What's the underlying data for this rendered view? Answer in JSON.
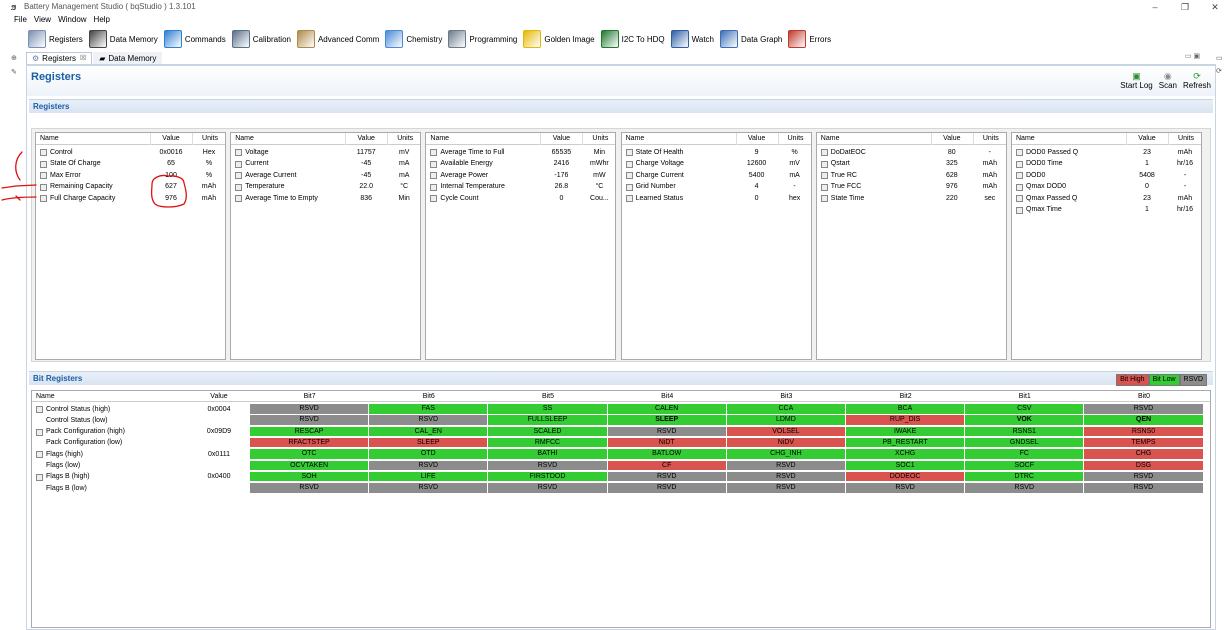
{
  "window": {
    "title": "Battery Management Studio ( bqStudio ) 1.3.101",
    "controls": [
      "–",
      "❐",
      "✕"
    ]
  },
  "menu": [
    "File",
    "View",
    "Window",
    "Help"
  ],
  "toolbar": [
    {
      "label": "Registers",
      "icon": "gears-icon",
      "color": "#7a8fb3"
    },
    {
      "label": "Data Memory",
      "icon": "memory-chip-icon",
      "color": "#444444"
    },
    {
      "label": "Commands",
      "icon": "refresh-arrows-icon",
      "color": "#2f7fd3"
    },
    {
      "label": "Calibration",
      "icon": "screen-icon",
      "color": "#5a6f8a"
    },
    {
      "label": "Advanced Comm",
      "icon": "comm-icon",
      "color": "#b08a48"
    },
    {
      "label": "Chemistry",
      "icon": "flask-icon",
      "color": "#4a8ad8"
    },
    {
      "label": "Programming",
      "icon": "calculator-icon",
      "color": "#6c7b8c"
    },
    {
      "label": "Golden Image",
      "icon": "chip-icon",
      "color": "#e6b800"
    },
    {
      "label": "I2C To HDQ",
      "icon": "hdq-icon",
      "color": "#1e7a2e"
    },
    {
      "label": "Watch",
      "icon": "watch-icon",
      "color": "#2d5ea5"
    },
    {
      "label": "Data Graph",
      "icon": "graph-icon",
      "color": "#3a6fb5"
    },
    {
      "label": "Errors",
      "icon": "error-icon",
      "color": "#c0392b"
    }
  ],
  "tabs": [
    {
      "label": "Registers",
      "close": "☒",
      "active": true
    },
    {
      "label": "Data Memory",
      "close": "",
      "active": false
    }
  ],
  "editor": {
    "title": "Registers",
    "actions": [
      {
        "label": "Start Log",
        "icon": "log-icon"
      },
      {
        "label": "Scan",
        "icon": "scan-icon"
      },
      {
        "label": "Refresh",
        "icon": "refresh-icon"
      }
    ],
    "section_registers": "Registers",
    "section_bits": "Bit Registers"
  },
  "register_panels": [
    {
      "headers": [
        "Name",
        "Value",
        "Units"
      ],
      "rows": [
        [
          "Control",
          "0x0016",
          "Hex"
        ],
        [
          "State Of Charge",
          "65",
          "%"
        ],
        [
          "Max Error",
          "100",
          "%"
        ],
        [
          "Remaining Capacity",
          "627",
          "mAh"
        ],
        [
          "Full Charge Capacity",
          "976",
          "mAh"
        ]
      ]
    },
    {
      "headers": [
        "Name",
        "Value",
        "Units"
      ],
      "rows": [
        [
          "Voltage",
          "11757",
          "mV"
        ],
        [
          "Current",
          "-45",
          "mA"
        ],
        [
          "Average Current",
          "-45",
          "mA"
        ],
        [
          "Temperature",
          "22.0",
          "°C"
        ],
        [
          "Average Time to Empty",
          "836",
          "Min"
        ]
      ]
    },
    {
      "headers": [
        "Name",
        "Value",
        "Units"
      ],
      "rows": [
        [
          "Average Time to Full",
          "65535",
          "Min"
        ],
        [
          "Available Energy",
          "2416",
          "mWhr"
        ],
        [
          "Average Power",
          "-176",
          "mW"
        ],
        [
          "Internal Temperature",
          "26.8",
          "°C"
        ],
        [
          "Cycle Count",
          "0",
          "Cou..."
        ]
      ]
    },
    {
      "headers": [
        "Name",
        "Value",
        "Units"
      ],
      "rows": [
        [
          "State Of Health",
          "9",
          "%"
        ],
        [
          "Charge Voltage",
          "12600",
          "mV"
        ],
        [
          "Charge Current",
          "5400",
          "mA"
        ],
        [
          "Grid Number",
          "4",
          "-"
        ],
        [
          "Learned Status",
          "0",
          "hex"
        ]
      ]
    },
    {
      "headers": [
        "Name",
        "Value",
        "Units"
      ],
      "rows": [
        [
          "DoDatEOC",
          "80",
          "-"
        ],
        [
          "Qstart",
          "325",
          "mAh"
        ],
        [
          "True RC",
          "628",
          "mAh"
        ],
        [
          "True FCC",
          "976",
          "mAh"
        ],
        [
          "State Time",
          "220",
          "sec"
        ]
      ]
    },
    {
      "headers": [
        "Name",
        "Value",
        "Units"
      ],
      "rows": [
        [
          "DOD0 Passed Q",
          "23",
          "mAh"
        ],
        [
          "DOD0 Time",
          "1",
          "hr/16"
        ],
        [
          "DOD0",
          "5408",
          "-"
        ],
        [
          "Qmax DOD0",
          "0",
          "-"
        ],
        [
          "Qmax Passed Q",
          "23",
          "mAh"
        ],
        [
          "Qmax Time",
          "1",
          "hr/16"
        ]
      ]
    }
  ],
  "bit_legend": [
    {
      "label": "Bit High",
      "color": "#d9534f"
    },
    {
      "label": "Bit Low",
      "color": "#33cc33"
    },
    {
      "label": "RSVD",
      "color": "#8c8c8c"
    }
  ],
  "bit_headers": [
    "Name",
    "Value",
    "Bit7",
    "Bit6",
    "Bit5",
    "Bit4",
    "Bit3",
    "Bit2",
    "Bit1",
    "Bit0"
  ],
  "bit_colors": {
    "H": "#d9534f",
    "L": "#33cc33",
    "R": "#8c8c8c"
  },
  "bit_rows": [
    {
      "name": "Control Status (high)",
      "value": "0x0004",
      "check": true,
      "bits": [
        [
          "RSVD",
          "R"
        ],
        [
          "FAS",
          "L"
        ],
        [
          "SS",
          "L"
        ],
        [
          "CALEN",
          "L"
        ],
        [
          "CCA",
          "L"
        ],
        [
          "BCA",
          "L"
        ],
        [
          "CSV",
          "L"
        ],
        [
          "RSVD",
          "R"
        ]
      ]
    },
    {
      "name": "Control Status (low)",
      "value": "",
      "check": false,
      "bits": [
        [
          "RSVD",
          "R"
        ],
        [
          "RSVD",
          "R"
        ],
        [
          "FULLSLEEP",
          "L"
        ],
        [
          "SLEEP",
          "L",
          true
        ],
        [
          "LDMD",
          "L"
        ],
        [
          "RUP_DIS",
          "H"
        ],
        [
          "VOK",
          "L",
          true
        ],
        [
          "QEN",
          "L",
          true
        ]
      ]
    },
    {
      "name": "Pack Configuration (high)",
      "value": "0x09D9",
      "check": true,
      "bits": [
        [
          "RESCAP",
          "L"
        ],
        [
          "CAL_EN",
          "L"
        ],
        [
          "SCALED",
          "L"
        ],
        [
          "RSVD",
          "R"
        ],
        [
          "VOLSEL",
          "H"
        ],
        [
          "IWAKE",
          "L"
        ],
        [
          "RSNS1",
          "L"
        ],
        [
          "RSNS0",
          "H"
        ]
      ]
    },
    {
      "name": "Pack Configuration (low)",
      "value": "",
      "check": false,
      "bits": [
        [
          "RFACTSTEP",
          "H"
        ],
        [
          "SLEEP",
          "H"
        ],
        [
          "RMFCC",
          "L"
        ],
        [
          "NiDT",
          "H"
        ],
        [
          "NiDV",
          "H"
        ],
        [
          "PB_RESTART",
          "L"
        ],
        [
          "GNDSEL",
          "L"
        ],
        [
          "TEMPS",
          "H"
        ]
      ]
    },
    {
      "name": "Flags (high)",
      "value": "0x0111",
      "check": true,
      "bits": [
        [
          "OTC",
          "L"
        ],
        [
          "OTD",
          "L"
        ],
        [
          "BATHI",
          "L"
        ],
        [
          "BATLOW",
          "L"
        ],
        [
          "CHG_INH",
          "L"
        ],
        [
          "XCHG",
          "L"
        ],
        [
          "FC",
          "L"
        ],
        [
          "CHG",
          "H"
        ]
      ]
    },
    {
      "name": "Flags (low)",
      "value": "",
      "check": false,
      "bits": [
        [
          "OCVTAKEN",
          "L"
        ],
        [
          "RSVD",
          "R"
        ],
        [
          "RSVD",
          "R"
        ],
        [
          "CF",
          "H"
        ],
        [
          "RSVD",
          "R"
        ],
        [
          "SOC1",
          "L"
        ],
        [
          "SOCF",
          "L"
        ],
        [
          "DSG",
          "H"
        ]
      ]
    },
    {
      "name": "Flags B (high)",
      "value": "0x0400",
      "check": true,
      "bits": [
        [
          "SOH",
          "L"
        ],
        [
          "LIFE",
          "L"
        ],
        [
          "FIRSTDOD",
          "L"
        ],
        [
          "RSVD",
          "R"
        ],
        [
          "RSVD",
          "R"
        ],
        [
          "DODEOC",
          "H"
        ],
        [
          "DTRC",
          "L"
        ],
        [
          "RSVD",
          "R"
        ]
      ]
    },
    {
      "name": "Flags B (low)",
      "value": "",
      "check": false,
      "bits": [
        [
          "RSVD",
          "R"
        ],
        [
          "RSVD",
          "R"
        ],
        [
          "RSVD",
          "R"
        ],
        [
          "RSVD",
          "R"
        ],
        [
          "RSVD",
          "R"
        ],
        [
          "RSVD",
          "R"
        ],
        [
          "RSVD",
          "R"
        ],
        [
          "RSVD",
          "R"
        ]
      ]
    }
  ],
  "annotation_color": "#e01010"
}
